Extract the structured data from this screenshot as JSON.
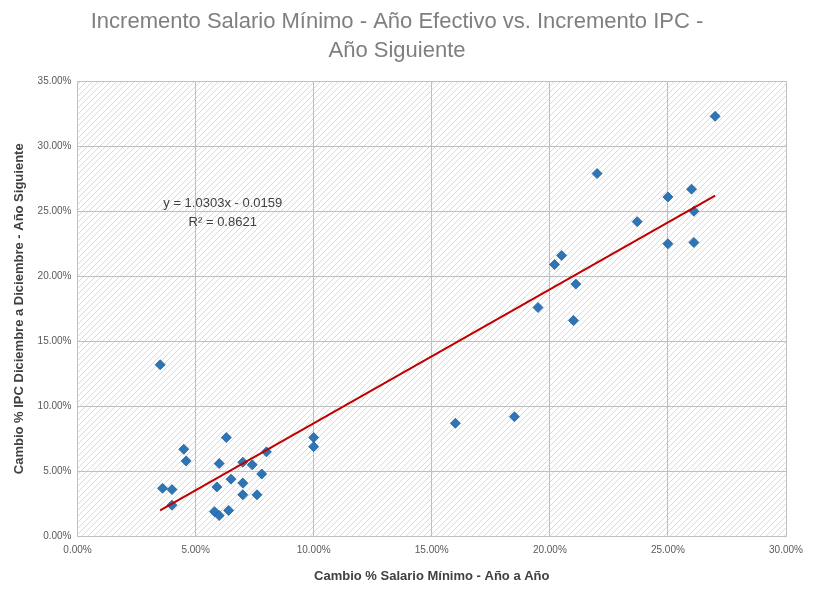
{
  "chart_data": {
    "type": "scatter",
    "title": [
      "Incremento Salario Mínimo - Año Efectivo vs. Incremento IPC -",
      "Año Siguiente"
    ],
    "x_label": "Cambio % Salario Mínimo - Año a Año",
    "y_label": "Cambio % IPC Diciembre a Diciembre - Año Siguiente",
    "series": [
      {
        "type": "scatter",
        "color": "#2e75b6",
        "marker": "diamond",
        "x": [
          3.5,
          3.6,
          4.0,
          4.0,
          4.5,
          4.6,
          5.8,
          5.9,
          6.0,
          6.0,
          6.3,
          6.4,
          6.5,
          7.0,
          7.0,
          7.0,
          7.4,
          7.6,
          7.8,
          8.0,
          10.0,
          10.0,
          16.0,
          18.5,
          19.5,
          20.2,
          20.5,
          21.0,
          21.1,
          22.0,
          23.7,
          25.0,
          25.0,
          26.0,
          26.1,
          26.1,
          27.0
        ],
        "values": [
          13.2,
          3.7,
          3.6,
          2.4,
          6.7,
          5.8,
          1.9,
          3.8,
          5.6,
          1.6,
          7.6,
          2.0,
          4.4,
          5.7,
          4.1,
          3.2,
          5.5,
          3.2,
          4.8,
          6.5,
          6.9,
          7.6,
          8.7,
          9.2,
          17.6,
          20.9,
          21.6,
          16.6,
          19.4,
          27.9,
          24.2,
          26.1,
          22.5,
          26.7,
          25.0,
          22.6,
          32.3
        ]
      },
      {
        "type": "line",
        "color": "#c00000",
        "marker": "none",
        "line_style": "solid",
        "x": [
          3.5,
          27.0
        ],
        "values": [
          2.0,
          26.2
        ]
      }
    ],
    "annotations": [
      {
        "text": "y = 1.0303x - 0.0159"
      },
      {
        "text": "R² = 0.8621"
      }
    ],
    "xlim": [
      0,
      30
    ],
    "xticks": [
      {
        "value": 0,
        "label": "0.00%"
      },
      {
        "value": 5,
        "label": "5.00%"
      },
      {
        "value": 10,
        "label": "10.00%"
      },
      {
        "value": 15,
        "label": "15.00%"
      },
      {
        "value": 20,
        "label": "20.00%"
      },
      {
        "value": 25,
        "label": "25.00%"
      },
      {
        "value": 30,
        "label": "30.00%"
      }
    ],
    "ylim": [
      0,
      35
    ],
    "yticks": [
      {
        "value": 0,
        "label": "0.00%"
      },
      {
        "value": 5,
        "label": "5.00%"
      },
      {
        "value": 10,
        "label": "10.00%"
      },
      {
        "value": 15,
        "label": "15.00%"
      },
      {
        "value": 20,
        "label": "20.00%"
      },
      {
        "value": 25,
        "label": "25.00%"
      },
      {
        "value": 30,
        "label": "30.00%"
      },
      {
        "value": 35,
        "label": "35.00%"
      }
    ],
    "grid": true,
    "legend": false
  }
}
